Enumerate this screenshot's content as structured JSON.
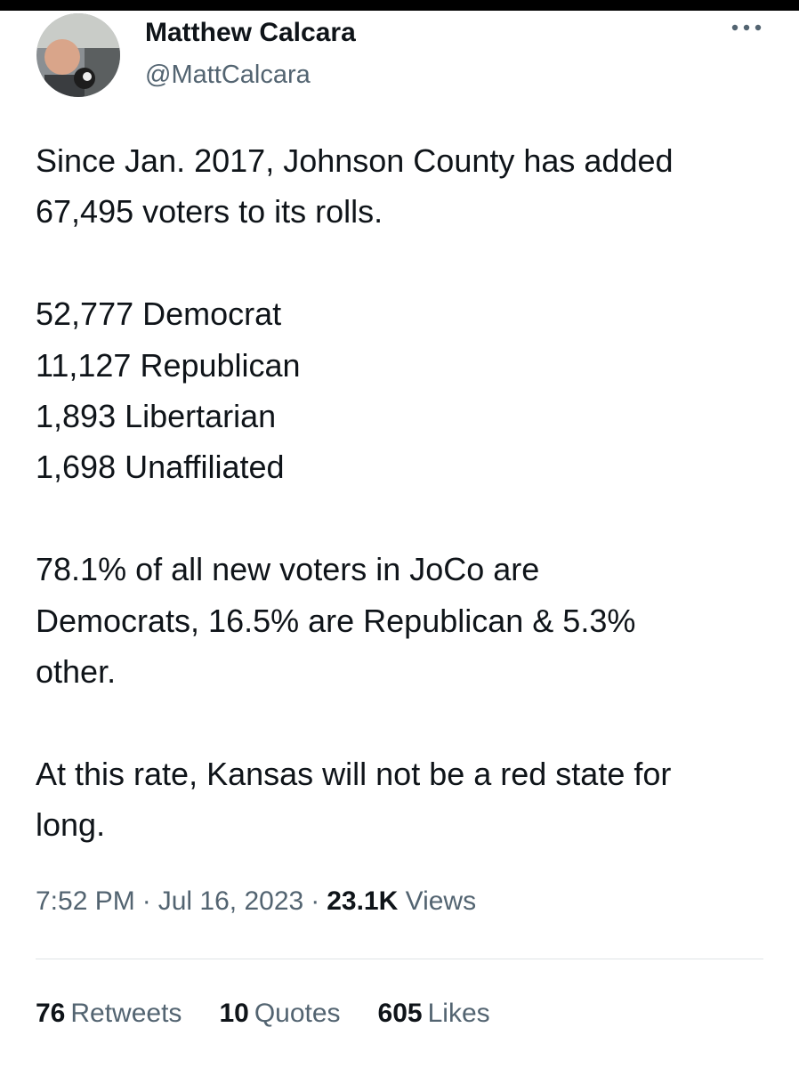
{
  "user": {
    "name": "Matthew Calcara",
    "handle": "@MattCalcara"
  },
  "tweet": {
    "paragraphs": [
      [
        "Since Jan. 2017, Johnson County has added",
        "67,495 voters to its rolls."
      ],
      [
        "52,777 Democrat",
        "11,127 Republican",
        "1,893 Libertarian",
        "1,698 Unaffiliated"
      ],
      [
        "78.1% of all new voters in JoCo are",
        "Democrats, 16.5% are Republican & 5.3%",
        "other."
      ],
      [
        "At this rate, Kansas will not be a red state for",
        "long."
      ]
    ]
  },
  "meta": {
    "time": "7:52 PM",
    "separator": "·",
    "date": "Jul 16, 2023",
    "views_count": "23.1K",
    "views_label": "Views"
  },
  "stats": [
    {
      "count": "76",
      "label": "Retweets"
    },
    {
      "count": "10",
      "label": "Quotes"
    },
    {
      "count": "605",
      "label": "Likes"
    }
  ]
}
